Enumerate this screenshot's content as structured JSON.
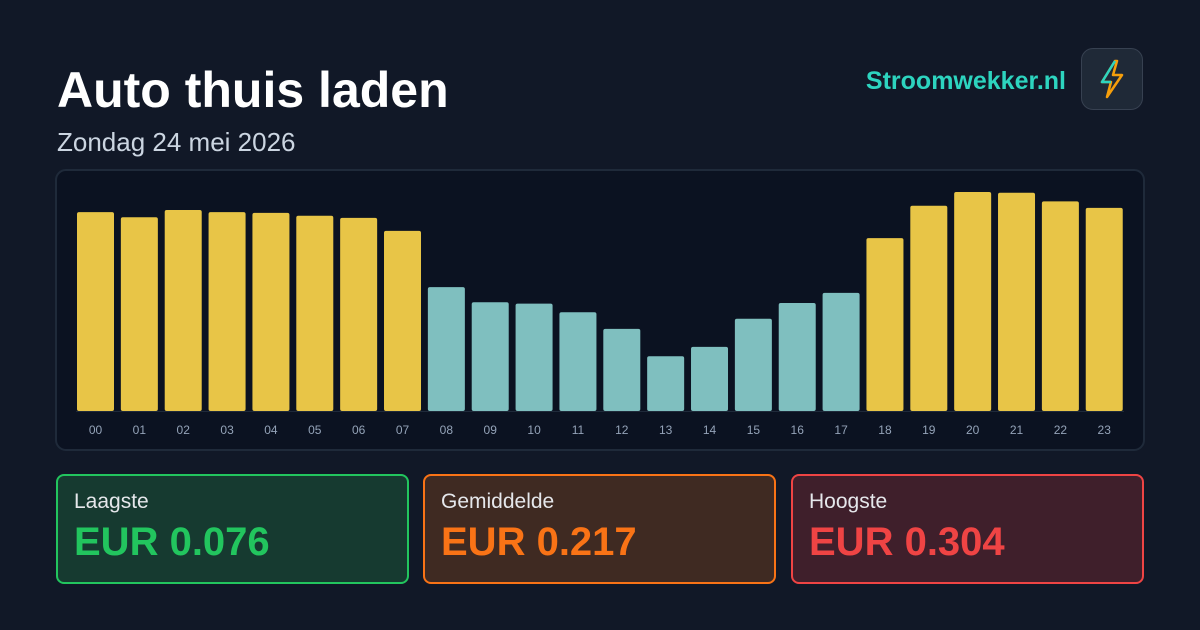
{
  "header": {
    "title": "Auto thuis laden",
    "subtitle": "Zondag 24 mei 2026",
    "brand": "Stroomwekker.nl"
  },
  "chart_data": {
    "type": "bar",
    "categories": [
      "00",
      "01",
      "02",
      "03",
      "04",
      "05",
      "06",
      "07",
      "08",
      "09",
      "10",
      "11",
      "12",
      "13",
      "14",
      "15",
      "16",
      "17",
      "18",
      "19",
      "20",
      "21",
      "22",
      "23"
    ],
    "values": [
      0.276,
      0.269,
      0.279,
      0.276,
      0.275,
      0.271,
      0.268,
      0.25,
      0.172,
      0.151,
      0.149,
      0.137,
      0.114,
      0.076,
      0.089,
      0.128,
      0.15,
      0.164,
      0.24,
      0.285,
      0.304,
      0.303,
      0.291,
      0.282
    ],
    "colors": [
      "#e8c547",
      "#e8c547",
      "#e8c547",
      "#e8c547",
      "#e8c547",
      "#e8c547",
      "#e8c547",
      "#e8c547",
      "#7fbfbf",
      "#7fbfbf",
      "#7fbfbf",
      "#7fbfbf",
      "#7fbfbf",
      "#7fbfbf",
      "#7fbfbf",
      "#7fbfbf",
      "#7fbfbf",
      "#7fbfbf",
      "#e8c547",
      "#e8c547",
      "#e8c547",
      "#e8c547",
      "#e8c547",
      "#e8c547"
    ]
  },
  "stats": [
    {
      "label": "Laagste",
      "value": "EUR 0.076"
    },
    {
      "label": "Gemiddelde",
      "value": "EUR 0.217"
    },
    {
      "label": "Hoogste",
      "value": "EUR 0.304"
    }
  ]
}
